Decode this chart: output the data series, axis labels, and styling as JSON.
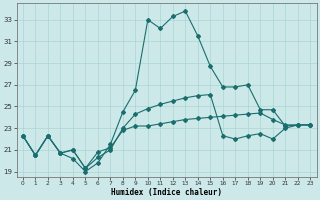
{
  "xlabel": "Humidex (Indice chaleur)",
  "background_color": "#cce8e8",
  "grid_color": "#aad4d4",
  "line_color": "#1a6e6e",
  "xlim": [
    -0.5,
    23.5
  ],
  "ylim": [
    18.5,
    34.5
  ],
  "yticks": [
    19,
    21,
    23,
    25,
    27,
    29,
    31,
    33
  ],
  "xtick_labels": [
    "0",
    "1",
    "2",
    "3",
    "4",
    "5",
    "6",
    "7",
    "8",
    "9",
    "10",
    "11",
    "12",
    "13",
    "14",
    "15",
    "16",
    "17",
    "18",
    "19",
    "20",
    "21",
    "22",
    "23"
  ],
  "s1_y": [
    22.3,
    20.5,
    22.3,
    20.7,
    21.0,
    19.3,
    20.8,
    21.2,
    22.8,
    23.2,
    23.2,
    23.4,
    23.6,
    23.8,
    23.9,
    24.0,
    24.1,
    24.2,
    24.3,
    24.4,
    23.8,
    23.3,
    23.3,
    23.3
  ],
  "s2_y": [
    22.3,
    20.5,
    22.3,
    20.7,
    21.0,
    19.3,
    20.3,
    21.0,
    23.0,
    24.3,
    24.8,
    25.2,
    25.5,
    25.8,
    26.0,
    26.1,
    22.3,
    22.0,
    22.3,
    22.5,
    22.0,
    23.0,
    23.3,
    23.3
  ],
  "s3_y": [
    22.3,
    20.5,
    22.3,
    20.7,
    20.2,
    19.0,
    19.8,
    21.5,
    24.5,
    26.5,
    33.0,
    32.2,
    33.3,
    33.8,
    31.5,
    28.7,
    26.8,
    26.8,
    27.0,
    24.7,
    24.7,
    23.2,
    23.3,
    23.3
  ]
}
